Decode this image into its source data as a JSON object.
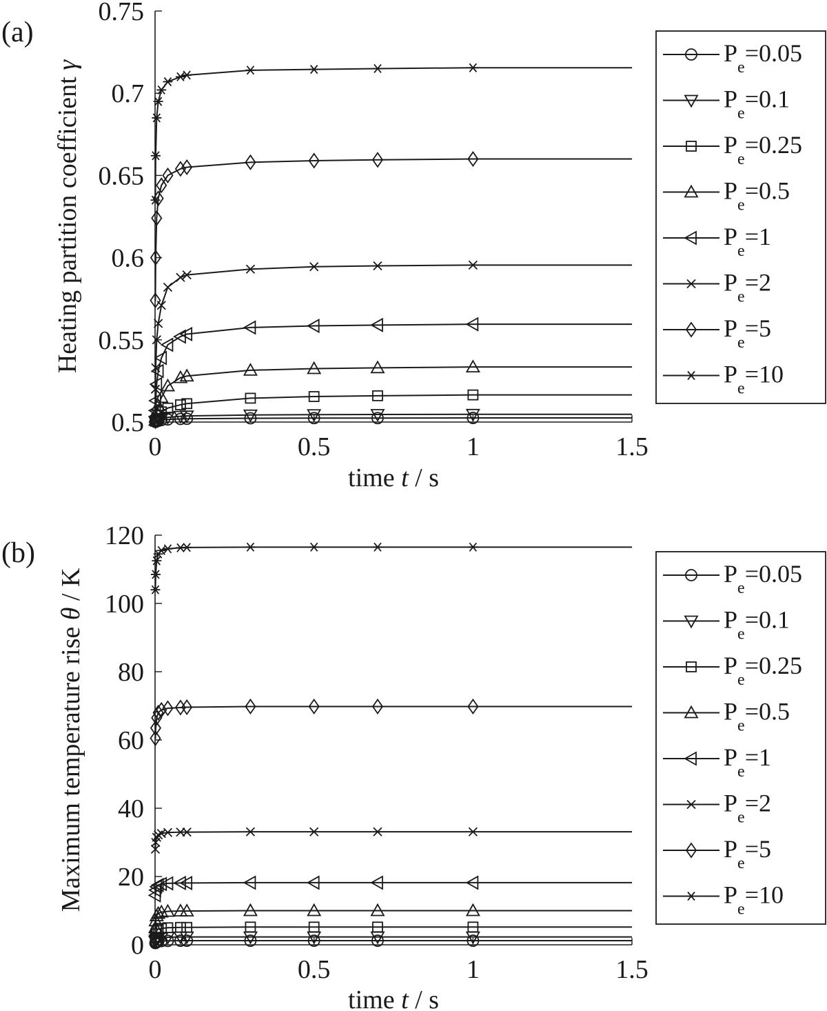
{
  "chart_data": [
    {
      "type": "line",
      "panel_label": "(a)",
      "ylabel": "Heating partition coefficient",
      "ylabel_symbol": "γ",
      "ylabel_unit": "",
      "xlabel": "time",
      "xlabel_symbol": "t",
      "xlabel_unit": "/ s",
      "xlim": [
        0,
        1.5
      ],
      "ylim": [
        0.5,
        0.75
      ],
      "xticks": [
        0,
        0.5,
        1,
        1.5
      ],
      "xtick_labels": [
        "0",
        "0.5",
        "1",
        "1.5"
      ],
      "yticks": [
        0.5,
        0.55,
        0.6,
        0.65,
        0.7,
        0.75
      ],
      "ytick_labels": [
        "0.5",
        "0.55",
        "0.6",
        "0.65",
        "0.7",
        "0.75"
      ],
      "grid": false,
      "legend_position": "right",
      "x": [
        0.001,
        0.002,
        0.005,
        0.01,
        0.02,
        0.04,
        0.08,
        0.1,
        0.3,
        0.5,
        0.7,
        1.0
      ],
      "line_end_x": 1.5,
      "series": [
        {
          "name": "0.05",
          "legend_prefix": "P",
          "legend_sub": "e",
          "legend_suffix": "=0.05",
          "marker": "circle",
          "values": [
            0.5001,
            0.5002,
            0.5004,
            0.5008,
            0.5012,
            0.5016,
            0.5019,
            0.502,
            0.5023,
            0.5024,
            0.5024,
            0.5025
          ]
        },
        {
          "name": "0.1",
          "legend_prefix": "P",
          "legend_sub": "e",
          "legend_suffix": "=0.1",
          "marker": "tri-down",
          "values": [
            0.5002,
            0.5004,
            0.5008,
            0.5015,
            0.5022,
            0.5029,
            0.5035,
            0.5037,
            0.5043,
            0.5045,
            0.5046,
            0.5047
          ]
        },
        {
          "name": "0.25",
          "legend_prefix": "P",
          "legend_sub": "e",
          "legend_suffix": "=0.25",
          "marker": "square",
          "values": [
            0.5005,
            0.501,
            0.5022,
            0.504,
            0.5062,
            0.5085,
            0.5105,
            0.5112,
            0.5145,
            0.5155,
            0.516,
            0.5165
          ]
        },
        {
          "name": "0.5",
          "legend_prefix": "P",
          "legend_sub": "e",
          "legend_suffix": "=0.5",
          "marker": "tri-up",
          "values": [
            0.501,
            0.503,
            0.506,
            0.51,
            0.515,
            0.522,
            0.527,
            0.528,
            0.5315,
            0.5325,
            0.533,
            0.5335
          ]
        },
        {
          "name": "1",
          "legend_prefix": "P",
          "legend_sub": "e",
          "legend_suffix": "=1",
          "marker": "tri-left",
          "values": [
            0.507,
            0.513,
            0.523,
            0.531,
            0.539,
            0.547,
            0.552,
            0.5535,
            0.5575,
            0.5585,
            0.559,
            0.5595
          ]
        },
        {
          "name": "2",
          "legend_prefix": "P",
          "legend_sub": "e",
          "legend_suffix": "=2",
          "marker": "x",
          "values": [
            0.52,
            0.533,
            0.55,
            0.56,
            0.571,
            0.582,
            0.588,
            0.5895,
            0.593,
            0.5945,
            0.595,
            0.5955
          ]
        },
        {
          "name": "5",
          "legend_prefix": "P",
          "legend_sub": "e",
          "legend_suffix": "=5",
          "marker": "diamond",
          "values": [
            0.574,
            0.6,
            0.624,
            0.636,
            0.644,
            0.65,
            0.654,
            0.655,
            0.658,
            0.659,
            0.6595,
            0.66
          ]
        },
        {
          "name": "10",
          "legend_prefix": "P",
          "legend_sub": "e",
          "legend_suffix": "=10",
          "marker": "asterisk",
          "values": [
            0.635,
            0.662,
            0.685,
            0.695,
            0.702,
            0.707,
            0.71,
            0.711,
            0.714,
            0.7145,
            0.715,
            0.7155
          ]
        }
      ]
    },
    {
      "type": "line",
      "panel_label": "(b)",
      "ylabel": "Maximum temperature rise",
      "ylabel_symbol": "θ",
      "ylabel_unit": "/ K",
      "xlabel": "time",
      "xlabel_symbol": "t",
      "xlabel_unit": "/ s",
      "xlim": [
        0,
        1.5
      ],
      "ylim": [
        0,
        120
      ],
      "xticks": [
        0,
        0.5,
        1,
        1.5
      ],
      "xtick_labels": [
        "0",
        "0.5",
        "1",
        "1.5"
      ],
      "yticks": [
        0,
        20,
        40,
        60,
        80,
        100,
        120
      ],
      "ytick_labels": [
        "0",
        "20",
        "40",
        "60",
        "80",
        "100",
        "120"
      ],
      "grid": false,
      "legend_position": "right",
      "x": [
        0.001,
        0.002,
        0.005,
        0.01,
        0.02,
        0.04,
        0.08,
        0.1,
        0.3,
        0.5,
        0.7,
        1.0
      ],
      "line_end_x": 1.5,
      "series": [
        {
          "name": "0.05",
          "legend_prefix": "P",
          "legend_sub": "e",
          "legend_suffix": "=0.05",
          "marker": "circle",
          "values": [
            0.5,
            0.7,
            0.9,
            1.0,
            1.1,
            1.15,
            1.2,
            1.2,
            1.2,
            1.2,
            1.2,
            1.2
          ]
        },
        {
          "name": "0.1",
          "legend_prefix": "P",
          "legend_sub": "e",
          "legend_suffix": "=0.1",
          "marker": "tri-down",
          "values": [
            1.0,
            1.4,
            1.8,
            2.0,
            2.1,
            2.2,
            2.3,
            2.3,
            2.3,
            2.3,
            2.3,
            2.3
          ]
        },
        {
          "name": "0.25",
          "legend_prefix": "P",
          "legend_sub": "e",
          "legend_suffix": "=0.25",
          "marker": "square",
          "values": [
            2.2,
            3.2,
            4.2,
            4.6,
            4.8,
            5.0,
            5.1,
            5.1,
            5.2,
            5.2,
            5.2,
            5.2
          ]
        },
        {
          "name": "0.5",
          "legend_prefix": "P",
          "legend_sub": "e",
          "legend_suffix": "=0.5",
          "marker": "tri-up",
          "values": [
            5.0,
            7.0,
            8.5,
            9.2,
            9.6,
            9.8,
            9.9,
            9.9,
            10.0,
            10.0,
            10.0,
            10.0
          ]
        },
        {
          "name": "1",
          "legend_prefix": "P",
          "legend_sub": "e",
          "legend_suffix": "=1",
          "marker": "tri-left",
          "values": [
            14.5,
            16.0,
            17.0,
            17.5,
            17.8,
            18.0,
            18.1,
            18.1,
            18.2,
            18.2,
            18.2,
            18.2
          ]
        },
        {
          "name": "2",
          "legend_prefix": "P",
          "legend_sub": "e",
          "legend_suffix": "=2",
          "marker": "x",
          "values": [
            28.0,
            30.0,
            31.5,
            32.2,
            32.6,
            32.9,
            33.0,
            33.0,
            33.1,
            33.1,
            33.1,
            33.1
          ]
        },
        {
          "name": "5",
          "legend_prefix": "P",
          "legend_sub": "e",
          "legend_suffix": "=5",
          "marker": "diamond",
          "values": [
            60.5,
            63.5,
            66.5,
            68.0,
            68.8,
            69.3,
            69.5,
            69.6,
            69.8,
            69.8,
            69.8,
            69.8
          ]
        },
        {
          "name": "10",
          "legend_prefix": "P",
          "legend_sub": "e",
          "legend_suffix": "=10",
          "marker": "asterisk",
          "values": [
            104.0,
            108.5,
            112.5,
            114.5,
            115.5,
            116.0,
            116.3,
            116.4,
            116.5,
            116.5,
            116.5,
            116.5
          ]
        }
      ]
    }
  ]
}
